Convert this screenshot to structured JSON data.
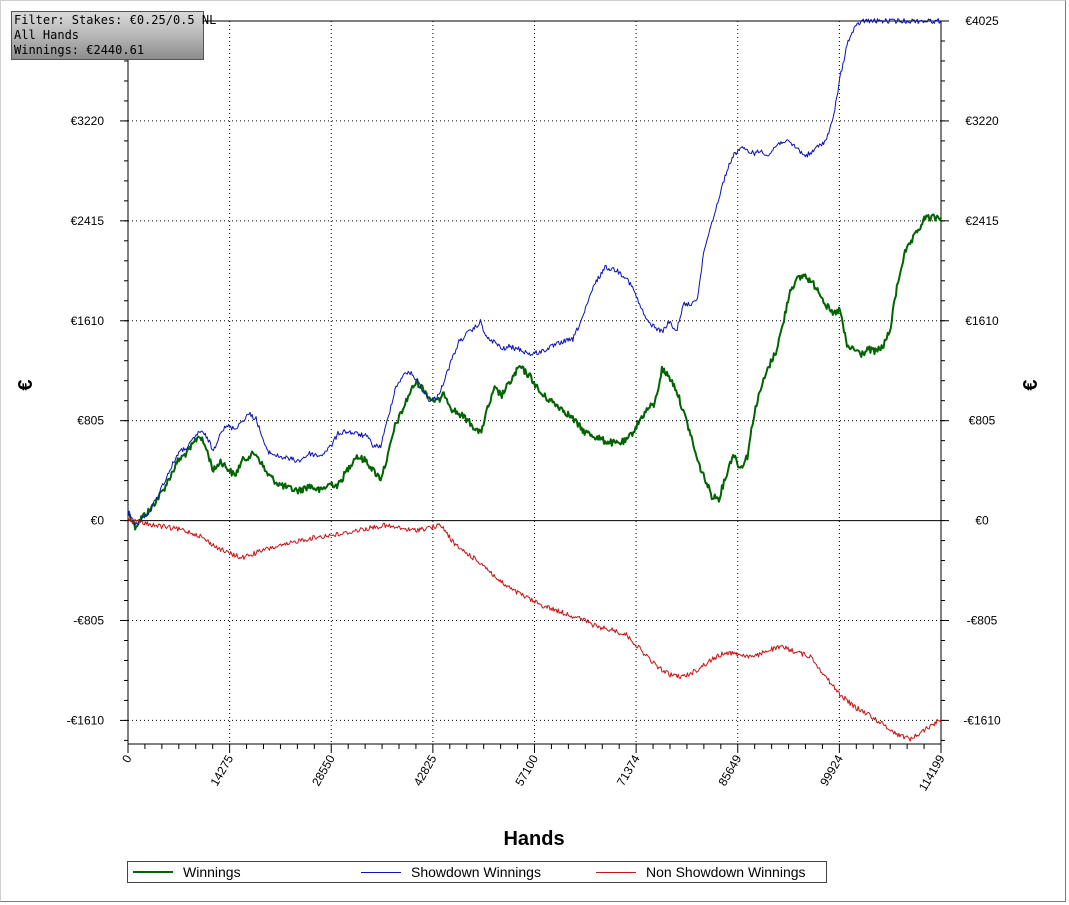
{
  "filter": {
    "line1": "Filter: Stakes: €0.25/0.5 NL",
    "line2": "All Hands",
    "line3": "Winnings: €2440.61"
  },
  "colors": {
    "winnings": "#006400",
    "showdown": "#0a14b4",
    "nonshowdown": "#c81414"
  },
  "chart_data": {
    "type": "line",
    "xlabel": "Hands",
    "ylabel": "€",
    "xlim": [
      0,
      114199
    ],
    "ylim": [
      -1800,
      4025
    ],
    "x_ticks": [
      "0",
      "14275",
      "28550",
      "42825",
      "57100",
      "71374",
      "85649",
      "99924",
      "114199"
    ],
    "y_ticks": [
      {
        "value": 4025,
        "label": "€4025"
      },
      {
        "value": 3220,
        "label": "€3220"
      },
      {
        "value": 2415,
        "label": "€2415"
      },
      {
        "value": 1610,
        "label": "€1610"
      },
      {
        "value": 805,
        "label": "€805"
      },
      {
        "value": 0,
        "label": "€0"
      },
      {
        "value": -805,
        "label": "-€805"
      },
      {
        "value": -1610,
        "label": "-€1610"
      }
    ],
    "grid": true,
    "legend": "bottom",
    "series": [
      {
        "name": "Winnings",
        "x": [
          0,
          1000,
          2000,
          3000,
          5000,
          7000,
          8500,
          10000,
          11000,
          12000,
          13000,
          14000,
          15000,
          16000,
          17000,
          18000,
          19500,
          21000,
          22500,
          24000,
          25500,
          27000,
          28500,
          29500,
          30500,
          32000,
          33500,
          34500,
          35500,
          36500,
          37500,
          38500,
          39500,
          40500,
          41500,
          42500,
          43500,
          44500,
          45500,
          46500,
          47500,
          48500,
          49500,
          50500,
          51500,
          52500,
          53500,
          55000,
          56500,
          58000,
          59500,
          61000,
          62500,
          64000,
          65500,
          67000,
          68500,
          70000,
          71000,
          72000,
          73000,
          74000,
          75000,
          76000,
          77000,
          78000,
          79000,
          80000,
          81000,
          82000,
          83000,
          84000,
          85000,
          86000,
          87000,
          88000,
          89000,
          90000,
          91000,
          92000,
          93000,
          94000,
          95000,
          96000,
          97000,
          98000,
          99000,
          100000,
          101000,
          102000,
          103000,
          104000,
          105000,
          106000,
          107000,
          108000,
          109000,
          110000,
          111000,
          112000,
          113000,
          114199
        ],
        "y": [
          80,
          -50,
          30,
          80,
          250,
          480,
          560,
          690,
          580,
          400,
          480,
          420,
          360,
          480,
          520,
          540,
          380,
          300,
          260,
          240,
          280,
          240,
          300,
          280,
          380,
          520,
          480,
          400,
          340,
          520,
          760,
          880,
          1020,
          1120,
          1060,
          980,
          960,
          1020,
          900,
          860,
          820,
          760,
          700,
          900,
          1060,
          1010,
          1100,
          1240,
          1160,
          1020,
          960,
          900,
          820,
          720,
          680,
          640,
          620,
          640,
          720,
          820,
          900,
          940,
          1220,
          1160,
          1060,
          880,
          700,
          480,
          340,
          200,
          180,
          360,
          540,
          420,
          520,
          880,
          1080,
          1240,
          1360,
          1580,
          1860,
          1940,
          1980,
          1920,
          1860,
          1740,
          1660,
          1700,
          1400,
          1380,
          1340,
          1380,
          1360,
          1400,
          1520,
          1880,
          2140,
          2240,
          2340,
          2440,
          2440,
          2440
        ]
      },
      {
        "name": "Showdown Winnings",
        "x": [
          0,
          1000,
          2000,
          3000,
          5000,
          7000,
          8500,
          10000,
          11000,
          12000,
          13000,
          14000,
          15000,
          16000,
          17000,
          18000,
          19500,
          21000,
          22500,
          24000,
          25500,
          27000,
          28500,
          29500,
          30500,
          32000,
          33500,
          34500,
          35500,
          36500,
          37500,
          38500,
          39500,
          40500,
          41500,
          42500,
          43500,
          44500,
          45500,
          46500,
          47500,
          48500,
          49500,
          50500,
          51500,
          52500,
          53500,
          55000,
          56500,
          58000,
          59500,
          61000,
          62500,
          64000,
          65500,
          67000,
          68500,
          70000,
          71000,
          72000,
          73000,
          74000,
          75000,
          76000,
          77000,
          78000,
          79000,
          80000,
          81000,
          82000,
          83000,
          84000,
          85000,
          86000,
          87000,
          88000,
          89000,
          90000,
          91000,
          92000,
          93000,
          94000,
          95000,
          96000,
          97000,
          98000,
          99000,
          100000,
          101000,
          102000,
          103000,
          104000,
          105000,
          106000,
          107000,
          108000,
          109000,
          110000,
          111000,
          112000,
          113000,
          114199
        ],
        "y": [
          80,
          -40,
          20,
          60,
          300,
          540,
          600,
          720,
          680,
          560,
          720,
          760,
          740,
          800,
          860,
          820,
          560,
          520,
          500,
          480,
          540,
          520,
          600,
          700,
          720,
          700,
          680,
          600,
          600,
          820,
          1060,
          1160,
          1200,
          1140,
          1040,
          960,
          1000,
          1140,
          1300,
          1440,
          1500,
          1540,
          1600,
          1460,
          1440,
          1380,
          1400,
          1380,
          1340,
          1360,
          1400,
          1440,
          1460,
          1660,
          1900,
          2040,
          2020,
          1960,
          1860,
          1720,
          1600,
          1560,
          1520,
          1600,
          1520,
          1740,
          1740,
          1800,
          2200,
          2400,
          2600,
          2800,
          2940,
          3000,
          2980,
          2960,
          2980,
          2940,
          3020,
          3060,
          3040,
          3000,
          2940,
          2960,
          3020,
          3060,
          3220,
          3560,
          3840,
          3960,
          4025,
          4025,
          4025,
          4025,
          4025,
          4025,
          4025,
          4025,
          4025,
          4025,
          4025,
          4025
        ]
      },
      {
        "name": "Non Showdown Winnings",
        "x": [
          0,
          2000,
          4000,
          6000,
          8000,
          10000,
          12000,
          14000,
          16000,
          18000,
          20000,
          22000,
          24000,
          26000,
          28000,
          30000,
          32000,
          34000,
          36000,
          38000,
          40000,
          42000,
          44000,
          46000,
          48000,
          50000,
          52000,
          54000,
          56000,
          58000,
          60000,
          62000,
          64000,
          66000,
          68000,
          70000,
          72000,
          74000,
          76000,
          78000,
          80000,
          82000,
          84000,
          86000,
          88000,
          90000,
          92000,
          94000,
          96000,
          98000,
          100000,
          102000,
          104000,
          106000,
          108000,
          110000,
          112000,
          114199
        ],
        "y": [
          10,
          -20,
          -40,
          -60,
          -80,
          -120,
          -200,
          -260,
          -300,
          -260,
          -220,
          -200,
          -160,
          -140,
          -120,
          -110,
          -80,
          -60,
          -40,
          -60,
          -80,
          -60,
          -40,
          -200,
          -280,
          -360,
          -480,
          -560,
          -620,
          -680,
          -720,
          -760,
          -800,
          -860,
          -880,
          -920,
          -1040,
          -1160,
          -1240,
          -1260,
          -1200,
          -1120,
          -1060,
          -1080,
          -1100,
          -1040,
          -1020,
          -1060,
          -1100,
          -1260,
          -1400,
          -1500,
          -1560,
          -1640,
          -1720,
          -1760,
          -1680,
          -1600
        ]
      }
    ]
  }
}
